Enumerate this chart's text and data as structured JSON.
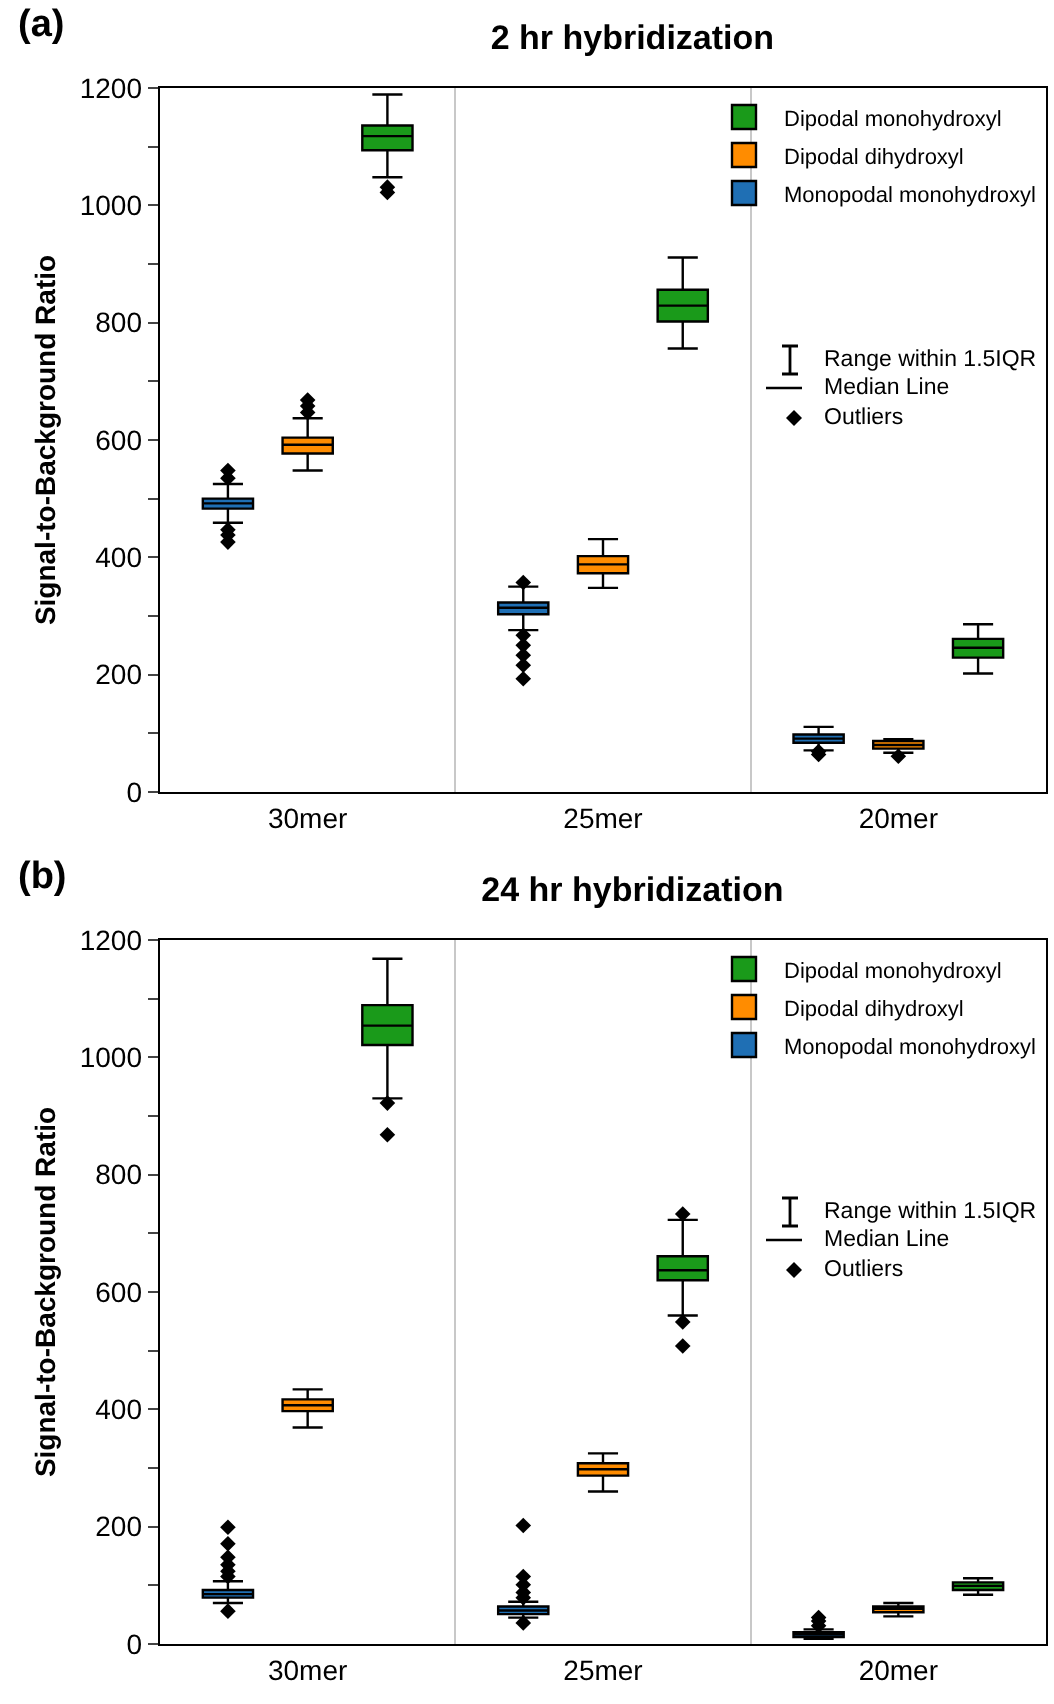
{
  "chart_data": [
    {
      "type": "box",
      "title": "2 hr hybridization",
      "ylabel": "Signal-to-Background Ratio",
      "categories": [
        "30mer",
        "25mer",
        "20mer"
      ],
      "ylim": [
        0,
        1200
      ],
      "yticks": [
        0,
        {
          "value": 100,
          "label": null
        },
        200,
        {
          "value": 300,
          "label": null
        },
        400,
        {
          "value": 500,
          "label": null
        },
        600,
        {
          "value": 700,
          "label": null
        },
        800,
        {
          "value": 900,
          "label": null
        },
        1000,
        {
          "value": 1100,
          "label": null
        },
        1200
      ],
      "grid": "x",
      "legend": "top right",
      "marker": "diamond",
      "annotations": [
        "(a)",
        "Range within 1.5IQR",
        "Median Line",
        "Outliers"
      ],
      "series": [
        {
          "name": "Monopodal monohydroxyl",
          "color": "#1f6fb4",
          "boxes": [
            {
              "low": 459,
              "q1": 483,
              "median": 492,
              "q3": 500,
              "high": 525,
              "outliers": [
                548,
                535,
                447,
                438,
                426
              ]
            },
            {
              "low": 276,
              "q1": 303,
              "median": 314,
              "q3": 323,
              "high": 350,
              "outliers": [
                357,
                267,
                250,
                233,
                216,
                193
              ]
            },
            {
              "low": 71,
              "q1": 84,
              "median": 91,
              "q3": 98,
              "high": 111,
              "outliers": [
                64,
                69
              ]
            }
          ]
        },
        {
          "name": "Dipodal dihydroxyl",
          "color": "#ff8c00",
          "boxes": [
            {
              "low": 548,
              "q1": 577,
              "median": 592,
              "q3": 604,
              "high": 637,
              "outliers": [
                668,
                658,
                647
              ]
            },
            {
              "low": 348,
              "q1": 373,
              "median": 388,
              "q3": 402,
              "high": 431
            },
            {
              "low": 67,
              "q1": 74,
              "median": 80,
              "q3": 87,
              "high": 90,
              "outliers": [
                61
              ]
            }
          ]
        },
        {
          "name": "Dipodal monohydroxyl",
          "color": "#1a9a1a",
          "boxes": [
            {
              "low": 1048,
              "q1": 1094,
              "median": 1118,
              "q3": 1136,
              "high": 1189,
              "outliers": [
                1031,
                1022
              ]
            },
            {
              "low": 756,
              "q1": 802,
              "median": 829,
              "q3": 856,
              "high": 911
            },
            {
              "low": 202,
              "q1": 229,
              "median": 246,
              "q3": 261,
              "high": 286
            }
          ]
        }
      ]
    },
    {
      "type": "box",
      "title": "24 hr hybridization",
      "ylabel": "Signal-to-Background Ratio",
      "categories": [
        "30mer",
        "25mer",
        "20mer"
      ],
      "ylim": [
        0,
        1200
      ],
      "yticks": [
        0,
        {
          "value": 100,
          "label": null
        },
        200,
        {
          "value": 300,
          "label": null
        },
        400,
        {
          "value": 500,
          "label": null
        },
        600,
        {
          "value": 700,
          "label": null
        },
        800,
        {
          "value": 900,
          "label": null
        },
        1000,
        {
          "value": 1100,
          "label": null
        },
        1200
      ],
      "grid": "x",
      "legend": "top right",
      "marker": "diamond",
      "annotations": [
        "(b)",
        "Range within 1.5IQR",
        "Median Line",
        "Outliers"
      ],
      "series": [
        {
          "name": "Monopodal monohydroxyl",
          "color": "#1f6fb4",
          "boxes": [
            {
              "low": 70,
              "q1": 79,
              "median": 85,
              "q3": 92,
              "high": 107,
              "outliers": [
                199,
                171,
                148,
                135,
                124,
                115,
                56
              ]
            },
            {
              "low": 45,
              "q1": 51,
              "median": 57,
              "q3": 64,
              "high": 72,
              "outliers": [
                202,
                115,
                101,
                88,
                79,
                36
              ]
            },
            {
              "low": 9,
              "q1": 12,
              "median": 17,
              "q3": 20,
              "high": 25,
              "outliers": [
                45,
                39,
                31
              ]
            }
          ]
        },
        {
          "name": "Dipodal dihydroxyl",
          "color": "#ff8c00",
          "boxes": [
            {
              "low": 369,
              "q1": 397,
              "median": 407,
              "q3": 417,
              "high": 434
            },
            {
              "low": 260,
              "q1": 287,
              "median": 298,
              "q3": 308,
              "high": 325
            },
            {
              "low": 47,
              "q1": 54,
              "median": 60,
              "q3": 64,
              "high": 70
            }
          ]
        },
        {
          "name": "Dipodal monohydroxyl",
          "color": "#1a9a1a",
          "boxes": [
            {
              "low": 930,
              "q1": 1021,
              "median": 1054,
              "q3": 1089,
              "high": 1168,
              "outliers": [
                922,
                868
              ]
            },
            {
              "low": 560,
              "q1": 620,
              "median": 637,
              "q3": 661,
              "high": 723,
              "outliers": [
                733,
                549,
                508
              ]
            },
            {
              "low": 84,
              "q1": 92,
              "median": 99,
              "q3": 105,
              "high": 112
            }
          ]
        }
      ]
    }
  ]
}
